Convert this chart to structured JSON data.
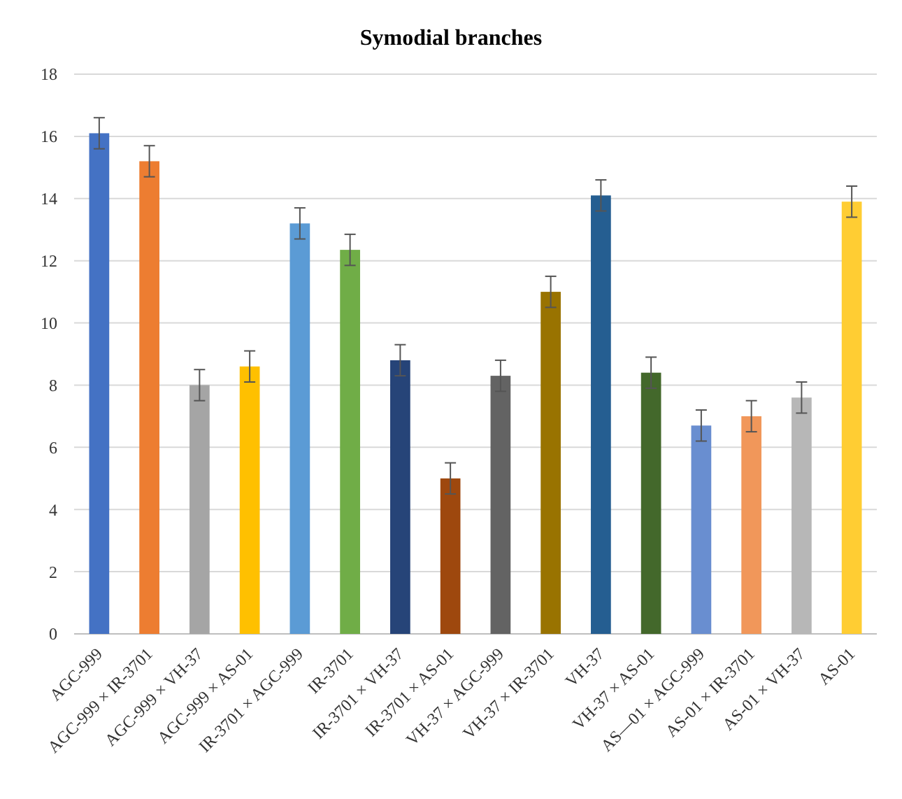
{
  "chart_data": {
    "type": "bar",
    "title": "Symodial branches",
    "categories": [
      "AGC-999",
      "AGC-999 × IR-3701",
      "AGC-999 × VH-37",
      "AGC-999 × AS-01",
      "IR-3701 × AGC-999",
      "IR-3701",
      "IR-3701 × VH-37",
      "IR-3701 × AS-01",
      "VH-37 × AGC-999",
      "VH-37 × IR-3701",
      "VH-37",
      "VH-37 × AS-01",
      "AS—01 × AGC-999",
      "AS-01 × IR-3701",
      "AS-01 × VH-37",
      "AS-01"
    ],
    "values": [
      16.1,
      15.2,
      8.0,
      8.6,
      13.2,
      12.35,
      8.8,
      5.0,
      8.3,
      11.0,
      14.1,
      8.4,
      6.7,
      7.0,
      7.6,
      13.9
    ],
    "errors": [
      0.5,
      0.5,
      0.5,
      0.5,
      0.5,
      0.5,
      0.5,
      0.5,
      0.5,
      0.5,
      0.5,
      0.5,
      0.5,
      0.5,
      0.5,
      0.5
    ],
    "colors": [
      "#4472c4",
      "#ed7d31",
      "#a5a5a5",
      "#ffc000",
      "#5b9bd5",
      "#70ad47",
      "#264478",
      "#9e480e",
      "#636363",
      "#997300",
      "#255e91",
      "#43682b",
      "#698ed0",
      "#f1975a",
      "#b7b7b7",
      "#ffcd33"
    ],
    "ylim": [
      0,
      18
    ],
    "yticks": [
      0,
      2,
      4,
      6,
      8,
      10,
      12,
      14,
      16,
      18
    ],
    "grid": "y"
  }
}
